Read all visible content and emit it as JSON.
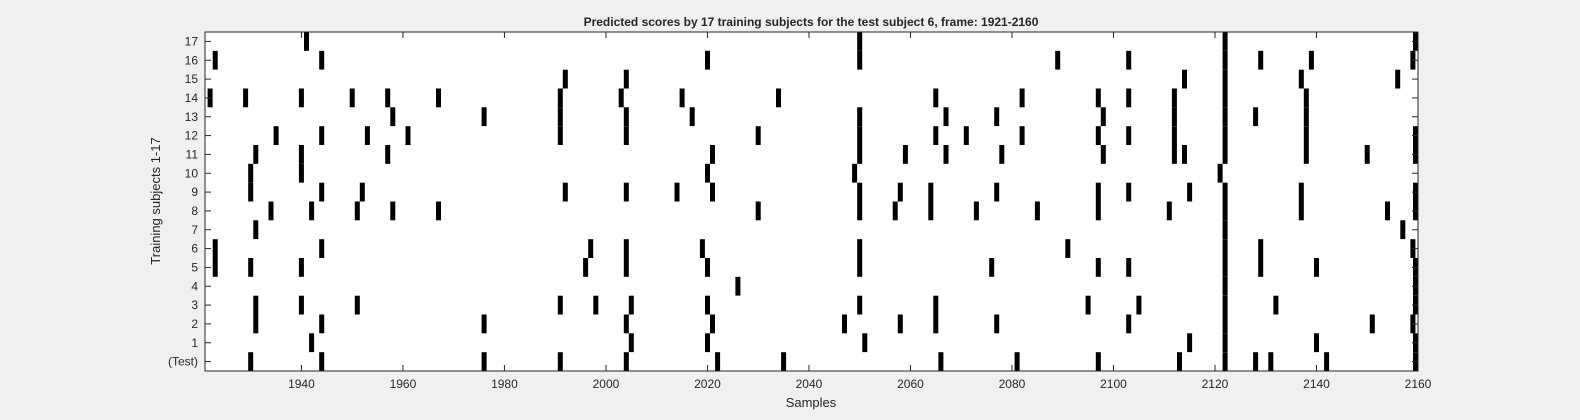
{
  "chart_data": {
    "type": "raster",
    "title": "Predicted scores by 17 training subjects for the test subject 6, frame: 1921-2160",
    "xlabel": "Samples",
    "ylabel": "Training subjects 1-17",
    "xlim": [
      1921,
      2160
    ],
    "x_ticks": [
      1940,
      1960,
      1980,
      2000,
      2020,
      2040,
      2060,
      2080,
      2100,
      2120,
      2140,
      2160
    ],
    "row_labels": [
      "(Test)",
      "1",
      "2",
      "3",
      "4",
      "5",
      "6",
      "7",
      "8",
      "9",
      "10",
      "11",
      "12",
      "13",
      "14",
      "15",
      "16",
      "17"
    ],
    "grid": false,
    "mark_color": "#000000",
    "background_color": "#ffffff",
    "figure_color": "#f0f0f0",
    "series": [
      {
        "row": "(Test)",
        "x": [
          1930,
          1944,
          1976,
          1991,
          2004,
          2022,
          2035,
          2066,
          2081,
          2097,
          2113,
          2122,
          2128,
          2131,
          2142,
          2160
        ]
      },
      {
        "row": "1",
        "x": [
          1942,
          2005,
          2020,
          2051,
          2115,
          2122,
          2140,
          2160
        ]
      },
      {
        "row": "2",
        "x": [
          1931,
          1944,
          1976,
          2004,
          2021,
          2047,
          2058,
          2065,
          2077,
          2103,
          2122,
          2151,
          2159
        ]
      },
      {
        "row": "3",
        "x": [
          1931,
          1940,
          1951,
          1991,
          1998,
          2005,
          2020,
          2050,
          2065,
          2095,
          2105,
          2122,
          2132,
          2161
        ]
      },
      {
        "row": "4",
        "x": [
          2026,
          2122,
          2160
        ]
      },
      {
        "row": "5",
        "x": [
          1923,
          1930,
          1940,
          1996,
          2004,
          2020,
          2050,
          2076,
          2097,
          2103,
          2122,
          2129,
          2140,
          2160
        ]
      },
      {
        "row": "6",
        "x": [
          1923,
          1944,
          1997,
          2004,
          2019,
          2050,
          2091,
          2122,
          2129,
          2159
        ]
      },
      {
        "row": "7",
        "x": [
          1931,
          2122,
          2157
        ]
      },
      {
        "row": "8",
        "x": [
          1934,
          1942,
          1951,
          1958,
          1967,
          2030,
          2050,
          2057,
          2064,
          2073,
          2085,
          2097,
          2111,
          2122,
          2137,
          2154,
          2160
        ]
      },
      {
        "row": "9",
        "x": [
          1930,
          1944,
          1952,
          1992,
          2004,
          2014,
          2021,
          2050,
          2058,
          2064,
          2077,
          2097,
          2103,
          2115,
          2122,
          2137,
          2160
        ]
      },
      {
        "row": "10",
        "x": [
          1930,
          1940,
          2020,
          2049,
          2121
        ]
      },
      {
        "row": "11",
        "x": [
          1931,
          1940,
          1957,
          2021,
          2050,
          2059,
          2067,
          2078,
          2098,
          2112,
          2114,
          2122,
          2138,
          2150,
          2160
        ]
      },
      {
        "row": "12",
        "x": [
          1935,
          1944,
          1953,
          1961,
          1991,
          2004,
          2030,
          2050,
          2065,
          2071,
          2082,
          2097,
          2103,
          2112,
          2122,
          2138,
          2160
        ]
      },
      {
        "row": "13",
        "x": [
          1958,
          1976,
          1991,
          2004,
          2017,
          2050,
          2067,
          2077,
          2098,
          2112,
          2122,
          2128,
          2138
        ]
      },
      {
        "row": "14",
        "x": [
          1922,
          1929,
          1940,
          1950,
          1957,
          1967,
          1991,
          2003,
          2015,
          2034,
          2065,
          2082,
          2097,
          2103,
          2112,
          2122,
          2138
        ]
      },
      {
        "row": "15",
        "x": [
          1992,
          2004,
          2114,
          2122,
          2137,
          2156
        ]
      },
      {
        "row": "16",
        "x": [
          1923,
          1944,
          2020,
          2050,
          2089,
          2103,
          2122,
          2129,
          2139,
          2159
        ]
      },
      {
        "row": "17",
        "x": [
          1941,
          2050,
          2122,
          2160
        ]
      }
    ]
  }
}
